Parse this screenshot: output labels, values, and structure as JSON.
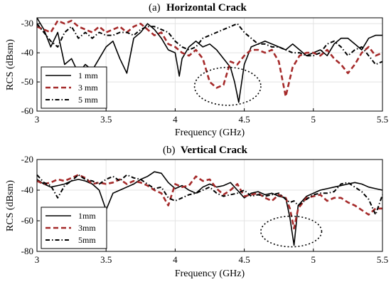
{
  "chart_data": [
    {
      "type": "line",
      "title_prefix": "(a)",
      "title": "Horizontal  Crack",
      "xlabel": "Frequency (GHz)",
      "ylabel": "RCS (dBsm)",
      "xlim": [
        3,
        5.5
      ],
      "ylim": [
        -60,
        -28
      ],
      "xticks": [
        3,
        3.5,
        4,
        4.5,
        5,
        5.5
      ],
      "xtick_labels": [
        "3",
        "3.5",
        "4",
        "4.5",
        "5",
        "5.5"
      ],
      "yticks": [
        -30,
        -40,
        -50,
        -60
      ],
      "ytick_labels": [
        "-30",
        "-40",
        "-50",
        "-60"
      ],
      "grid": true,
      "legend_position": "bottom-left",
      "annotation": {
        "shape": "dotted-ellipse",
        "center": [
          4.38,
          -51.5
        ],
        "rx_data": 0.24,
        "ry_data": 6.5
      },
      "series": [
        {
          "name": "1 mm",
          "style": "solid",
          "color": "#000000",
          "x": [
            3.0,
            3.05,
            3.1,
            3.15,
            3.2,
            3.25,
            3.3,
            3.35,
            3.4,
            3.45,
            3.5,
            3.55,
            3.6,
            3.65,
            3.7,
            3.75,
            3.8,
            3.85,
            3.9,
            3.95,
            4.0,
            4.03,
            4.05,
            4.1,
            4.15,
            4.2,
            4.25,
            4.3,
            4.35,
            4.4,
            4.43,
            4.46,
            4.5,
            4.55,
            4.6,
            4.65,
            4.7,
            4.75,
            4.8,
            4.85,
            4.9,
            4.95,
            5.0,
            5.05,
            5.1,
            5.15,
            5.2,
            5.25,
            5.3,
            5.35,
            5.4,
            5.45,
            5.5
          ],
          "y": [
            -28,
            -32,
            -38,
            -33,
            -44,
            -42,
            -47,
            -44,
            -46,
            -42,
            -38,
            -36,
            -42,
            -47,
            -35,
            -33,
            -30,
            -32,
            -35,
            -39,
            -40,
            -48,
            -42,
            -38,
            -36,
            -38,
            -37,
            -39,
            -42,
            -45,
            -50,
            -57,
            -44,
            -38,
            -37,
            -36,
            -37,
            -38,
            -39,
            -37,
            -39,
            -41,
            -40,
            -39,
            -41,
            -37,
            -35,
            -35,
            -37,
            -39,
            -35,
            -34,
            -34
          ]
        },
        {
          "name": "3 mm",
          "style": "dashed",
          "color": "#a52a2a",
          "x": [
            3.0,
            3.05,
            3.1,
            3.15,
            3.2,
            3.25,
            3.3,
            3.35,
            3.4,
            3.45,
            3.5,
            3.55,
            3.6,
            3.65,
            3.7,
            3.75,
            3.8,
            3.85,
            3.9,
            3.95,
            4.0,
            4.05,
            4.1,
            4.15,
            4.2,
            4.25,
            4.3,
            4.35,
            4.4,
            4.45,
            4.5,
            4.55,
            4.6,
            4.65,
            4.7,
            4.75,
            4.8,
            4.85,
            4.9,
            4.95,
            5.0,
            5.05,
            5.1,
            5.15,
            5.2,
            5.25,
            5.3,
            5.35,
            5.4,
            5.45,
            5.5
          ],
          "y": [
            -31,
            -32,
            -33,
            -29,
            -30,
            -29,
            -31,
            -32,
            -33,
            -31,
            -33,
            -32,
            -31,
            -33,
            -31,
            -30,
            -32,
            -34,
            -33,
            -37,
            -38,
            -40,
            -41,
            -39,
            -42,
            -50,
            -52,
            -51,
            -43,
            -44,
            -41,
            -39,
            -39,
            -40,
            -39,
            -43,
            -55,
            -45,
            -41,
            -40,
            -40,
            -41,
            -39,
            -42,
            -44,
            -47,
            -44,
            -40,
            -38,
            -41,
            -40
          ]
        },
        {
          "name": "5 mm",
          "style": "dashdot",
          "color": "#000000",
          "x": [
            3.0,
            3.05,
            3.1,
            3.15,
            3.2,
            3.25,
            3.3,
            3.35,
            3.4,
            3.45,
            3.5,
            3.55,
            3.6,
            3.65,
            3.7,
            3.75,
            3.8,
            3.85,
            3.9,
            3.95,
            4.0,
            4.05,
            4.1,
            4.15,
            4.2,
            4.25,
            4.3,
            4.35,
            4.4,
            4.45,
            4.5,
            4.55,
            4.6,
            4.65,
            4.7,
            4.75,
            4.8,
            4.85,
            4.9,
            4.95,
            5.0,
            5.05,
            5.1,
            5.15,
            5.2,
            5.25,
            5.3,
            5.35,
            5.4,
            5.45,
            5.5
          ],
          "y": [
            -30,
            -33,
            -36,
            -38,
            -33,
            -31,
            -35,
            -33,
            -35,
            -33,
            -34,
            -34,
            -33,
            -33,
            -34,
            -32,
            -31,
            -31,
            -32,
            -33,
            -36,
            -38,
            -39,
            -38,
            -35,
            -34,
            -33,
            -32,
            -31,
            -30,
            -33,
            -35,
            -37,
            -37,
            -38,
            -38,
            -39,
            -40,
            -40,
            -41,
            -41,
            -40,
            -37,
            -36,
            -38,
            -41,
            -39,
            -38,
            -41,
            -44,
            -43
          ]
        }
      ]
    },
    {
      "type": "line",
      "title_prefix": "(b)",
      "title": "Vertical  Crack",
      "xlabel": "Frequency (GHz)",
      "ylabel": "RCS (dBsm)",
      "xlim": [
        3,
        5.5
      ],
      "ylim": [
        -80,
        -20
      ],
      "xticks": [
        3,
        3.5,
        4,
        4.5,
        5,
        5.5
      ],
      "xtick_labels": [
        "3",
        "3.5",
        "4",
        "4.5",
        "5",
        "5.5"
      ],
      "yticks": [
        -20,
        -40,
        -60,
        -80
      ],
      "ytick_labels": [
        "-20",
        "-40",
        "-60",
        "-80"
      ],
      "grid": true,
      "legend_position": "bottom-left",
      "annotation": {
        "shape": "dotted-ellipse",
        "center": [
          4.84,
          -67
        ],
        "rx_data": 0.22,
        "ry_data": 10
      },
      "series": [
        {
          "name": "1mm",
          "style": "solid",
          "color": "#000000",
          "x": [
            3.0,
            3.05,
            3.1,
            3.15,
            3.2,
            3.25,
            3.3,
            3.35,
            3.4,
            3.45,
            3.5,
            3.55,
            3.6,
            3.65,
            3.7,
            3.75,
            3.8,
            3.85,
            3.9,
            3.95,
            4.0,
            4.05,
            4.1,
            4.15,
            4.2,
            4.25,
            4.3,
            4.35,
            4.4,
            4.45,
            4.5,
            4.55,
            4.6,
            4.65,
            4.7,
            4.75,
            4.8,
            4.83,
            4.86,
            4.89,
            4.95,
            5.0,
            5.05,
            5.1,
            5.15,
            5.2,
            5.25,
            5.3,
            5.35,
            5.4,
            5.45,
            5.5
          ],
          "y": [
            -33,
            -36,
            -38,
            -37,
            -36,
            -34,
            -33,
            -34,
            -36,
            -40,
            -53,
            -42,
            -40,
            -38,
            -36,
            -33,
            -31,
            -28,
            -29,
            -35,
            -39,
            -37,
            -40,
            -42,
            -38,
            -36,
            -38,
            -37,
            -35,
            -40,
            -45,
            -42,
            -41,
            -43,
            -42,
            -44,
            -45,
            -58,
            -76,
            -50,
            -44,
            -42,
            -40,
            -39,
            -38,
            -37,
            -36,
            -35,
            -36,
            -38,
            -39,
            -40
          ]
        },
        {
          "name": "3mm",
          "style": "dashed",
          "color": "#a52a2a",
          "x": [
            3.0,
            3.05,
            3.1,
            3.15,
            3.2,
            3.25,
            3.3,
            3.35,
            3.4,
            3.45,
            3.5,
            3.55,
            3.6,
            3.65,
            3.7,
            3.75,
            3.8,
            3.85,
            3.9,
            3.95,
            4.0,
            4.05,
            4.1,
            4.15,
            4.2,
            4.25,
            4.3,
            4.35,
            4.4,
            4.45,
            4.5,
            4.55,
            4.6,
            4.65,
            4.7,
            4.75,
            4.8,
            4.83,
            4.86,
            4.89,
            4.95,
            5.0,
            5.05,
            5.1,
            5.15,
            5.2,
            5.25,
            5.3,
            5.35,
            5.4,
            5.45,
            5.5
          ],
          "y": [
            -34,
            -36,
            -35,
            -33,
            -34,
            -32,
            -30,
            -32,
            -36,
            -35,
            -36,
            -35,
            -33,
            -36,
            -34,
            -35,
            -37,
            -40,
            -42,
            -50,
            -36,
            -38,
            -37,
            -31,
            -34,
            -33,
            -39,
            -43,
            -40,
            -36,
            -44,
            -43,
            -42,
            -45,
            -47,
            -43,
            -45,
            -52,
            -65,
            -52,
            -45,
            -44,
            -43,
            -47,
            -45,
            -45,
            -48,
            -50,
            -53,
            -56,
            -52,
            -52
          ]
        },
        {
          "name": "5mm",
          "style": "dashdot",
          "color": "#000000",
          "x": [
            3.0,
            3.05,
            3.1,
            3.15,
            3.2,
            3.25,
            3.3,
            3.35,
            3.4,
            3.45,
            3.5,
            3.55,
            3.6,
            3.65,
            3.7,
            3.75,
            3.8,
            3.85,
            3.9,
            3.95,
            4.0,
            4.05,
            4.1,
            4.15,
            4.2,
            4.25,
            4.3,
            4.35,
            4.4,
            4.45,
            4.5,
            4.55,
            4.6,
            4.65,
            4.7,
            4.75,
            4.8,
            4.83,
            4.86,
            4.89,
            4.95,
            5.0,
            5.05,
            5.1,
            5.15,
            5.2,
            5.25,
            5.3,
            5.35,
            5.4,
            5.45,
            5.5
          ],
          "y": [
            -30,
            -35,
            -37,
            -45,
            -37,
            -34,
            -30,
            -33,
            -34,
            -36,
            -33,
            -31,
            -34,
            -30,
            -32,
            -33,
            -36,
            -39,
            -38,
            -45,
            -47,
            -45,
            -43,
            -42,
            -40,
            -38,
            -42,
            -44,
            -43,
            -42,
            -40,
            -44,
            -43,
            -44,
            -43,
            -42,
            -46,
            -48,
            -47,
            -50,
            -46,
            -43,
            -42,
            -42,
            -41,
            -36,
            -35,
            -38,
            -41,
            -46,
            -56,
            -43
          ]
        }
      ]
    }
  ]
}
